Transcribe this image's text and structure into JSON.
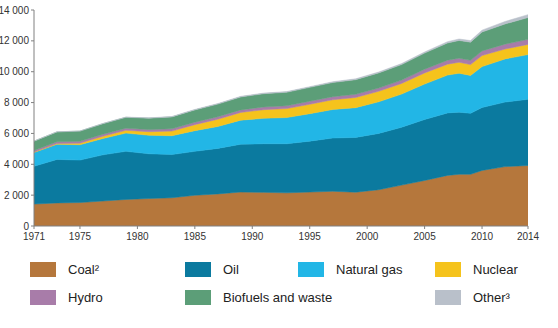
{
  "chart_data": {
    "type": "area",
    "stacked": true,
    "grid": false,
    "x": [
      1971,
      1973,
      1975,
      1977,
      1979,
      1981,
      1983,
      1985,
      1987,
      1989,
      1991,
      1993,
      1995,
      1997,
      1999,
      2001,
      2003,
      2005,
      2007,
      2008,
      2009,
      2010,
      2012,
      2014
    ],
    "xlim": [
      1971,
      2014
    ],
    "xticks": [
      1971,
      1975,
      1980,
      1985,
      1990,
      1995,
      2000,
      2005,
      2010,
      2014
    ],
    "ylim": [
      0,
      14000
    ],
    "yticks": [
      0,
      {
        "value": 2000,
        "label": "2 000"
      },
      {
        "value": 4000,
        "label": "4 000"
      },
      {
        "value": 6000,
        "label": "6 000"
      },
      {
        "value": 8000,
        "label": "8 000"
      },
      {
        "value": 10000,
        "label": "10 000"
      },
      {
        "value": 12000,
        "label": "12 000"
      },
      {
        "value": 14000,
        "label": "14 000"
      }
    ],
    "series": [
      {
        "name": "Coal²",
        "color": "#b5773c",
        "values": [
          1420,
          1495,
          1520,
          1620,
          1720,
          1780,
          1830,
          1990,
          2080,
          2200,
          2180,
          2150,
          2200,
          2250,
          2190,
          2350,
          2650,
          2950,
          3280,
          3350,
          3350,
          3600,
          3850,
          3920
        ]
      },
      {
        "name": "Oil",
        "color": "#0b7a9f",
        "values": [
          2450,
          2820,
          2750,
          2990,
          3120,
          2900,
          2800,
          2850,
          2950,
          3100,
          3150,
          3180,
          3300,
          3450,
          3550,
          3650,
          3750,
          3950,
          4050,
          4030,
          3950,
          4080,
          4180,
          4290
        ]
      },
      {
        "name": "Natural gas",
        "color": "#22b6e6",
        "values": [
          890,
          980,
          1000,
          1060,
          1180,
          1200,
          1220,
          1340,
          1420,
          1560,
          1650,
          1700,
          1780,
          1850,
          1930,
          2050,
          2150,
          2300,
          2450,
          2520,
          2460,
          2650,
          2800,
          2900
        ]
      },
      {
        "name": "Nuclear",
        "color": "#f5c31c",
        "values": [
          30,
          55,
          100,
          150,
          180,
          230,
          300,
          390,
          470,
          500,
          560,
          580,
          610,
          630,
          660,
          680,
          690,
          720,
          710,
          710,
          700,
          720,
          640,
          660
        ]
      },
      {
        "name": "Hydro",
        "color": "#a87ca9",
        "values": [
          100,
          110,
          120,
          125,
          135,
          140,
          150,
          155,
          160,
          165,
          175,
          180,
          195,
          200,
          205,
          210,
          215,
          240,
          255,
          265,
          275,
          295,
          315,
          330
        ]
      },
      {
        "name": "Biofuels and waste",
        "color": "#5c9e78",
        "values": [
          610,
          640,
          660,
          690,
          710,
          740,
          770,
          800,
          820,
          840,
          860,
          880,
          900,
          920,
          950,
          980,
          1010,
          1050,
          1120,
          1150,
          1180,
          1230,
          1310,
          1410
        ]
      },
      {
        "name": "Other³",
        "color": "#b9c0ca",
        "values": [
          5,
          6,
          8,
          10,
          15,
          20,
          25,
          30,
          35,
          40,
          40,
          42,
          45,
          50,
          55,
          60,
          65,
          70,
          85,
          95,
          105,
          120,
          160,
          190
        ]
      }
    ]
  }
}
